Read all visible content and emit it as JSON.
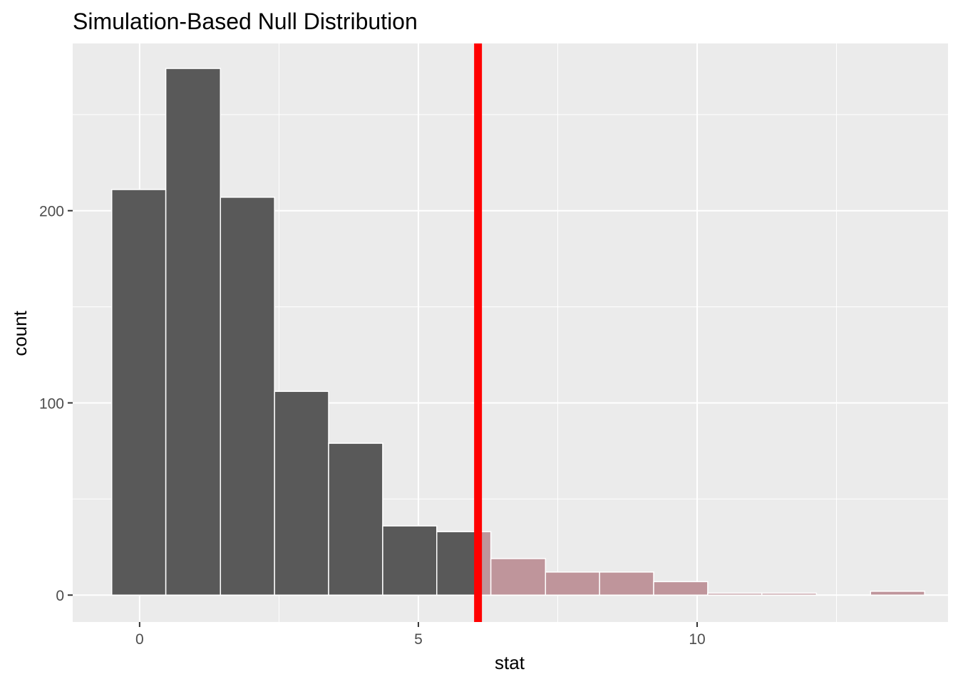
{
  "chart_data": {
    "type": "bar",
    "title": "Simulation-Based Null Distribution",
    "xlabel": "stat",
    "ylabel": "count",
    "xlim": [
      -1.2,
      14.5
    ],
    "ylim": [
      -14,
      287
    ],
    "x_ticks": [
      0,
      5,
      10
    ],
    "y_ticks": [
      0,
      100,
      200
    ],
    "grid": true,
    "panel_background": "#ebebeb",
    "grid_color": "#ffffff",
    "bins": [
      {
        "x_min": -0.5,
        "x_max": 0.47,
        "count": 211,
        "shaded": false
      },
      {
        "x_min": 0.47,
        "x_max": 1.45,
        "count": 274,
        "shaded": false
      },
      {
        "x_min": 1.45,
        "x_max": 2.42,
        "count": 207,
        "shaded": false
      },
      {
        "x_min": 2.42,
        "x_max": 3.39,
        "count": 106,
        "shaded": false
      },
      {
        "x_min": 3.39,
        "x_max": 4.36,
        "count": 79,
        "shaded": false
      },
      {
        "x_min": 4.36,
        "x_max": 5.33,
        "count": 36,
        "shaded": false
      },
      {
        "x_min": 5.33,
        "x_max": 6.07,
        "count": 33,
        "shaded": false
      },
      {
        "x_min": 6.07,
        "x_max": 6.3,
        "count": 33,
        "shaded": true
      },
      {
        "x_min": 6.3,
        "x_max": 7.28,
        "count": 19,
        "shaded": true
      },
      {
        "x_min": 7.28,
        "x_max": 8.25,
        "count": 12,
        "shaded": true
      },
      {
        "x_min": 8.25,
        "x_max": 9.22,
        "count": 12,
        "shaded": true
      },
      {
        "x_min": 9.22,
        "x_max": 10.19,
        "count": 7,
        "shaded": true
      },
      {
        "x_min": 10.19,
        "x_max": 11.16,
        "count": 1,
        "shaded": true
      },
      {
        "x_min": 11.16,
        "x_max": 12.14,
        "count": 1,
        "shaded": true
      },
      {
        "x_min": 12.14,
        "x_max": 13.11,
        "count": 0,
        "shaded": true
      },
      {
        "x_min": 13.11,
        "x_max": 14.08,
        "count": 2,
        "shaded": true
      }
    ],
    "bar_color": "#595959",
    "shaded_color": "#bf959b",
    "bar_outline": "#ffffff",
    "observed_stat": 6.07,
    "observed_line_color": "#ff0000"
  }
}
